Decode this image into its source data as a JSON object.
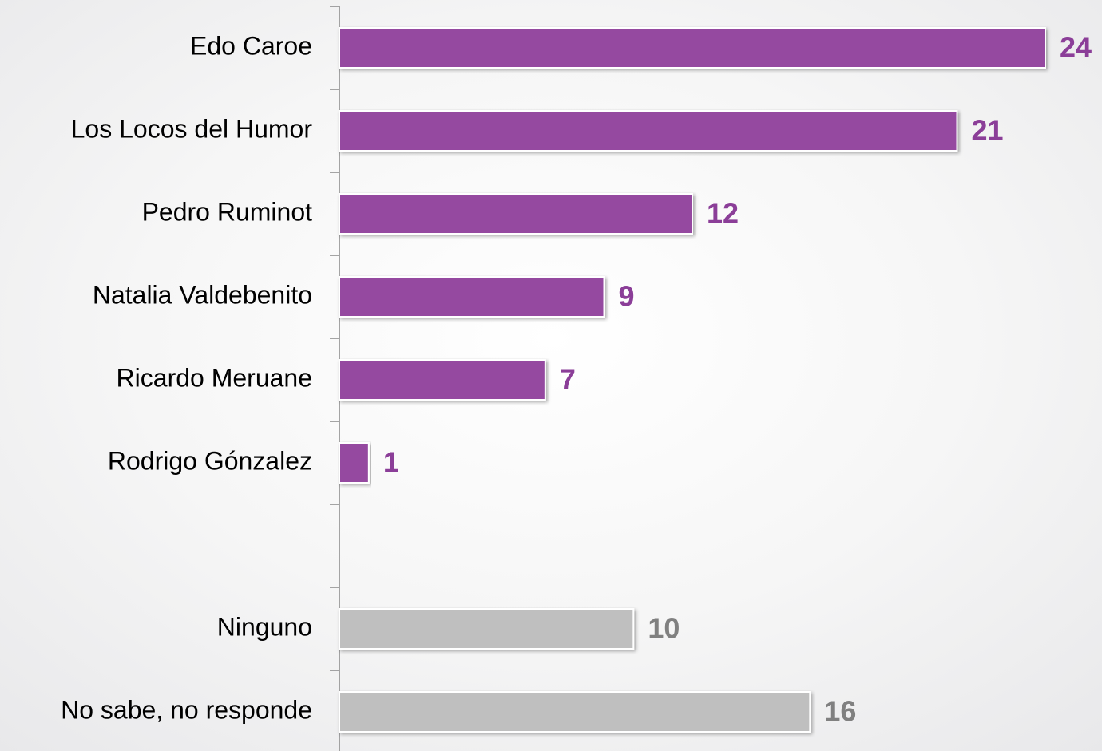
{
  "chart_data": {
    "type": "bar",
    "orientation": "horizontal",
    "categories": [
      "Edo Caroe",
      "Los Locos del Humor",
      "Pedro Ruminot",
      "Natalia Valdebenito",
      "Ricardo Meruane",
      "Rodrigo Gónzalez",
      null,
      "Ninguno",
      "No sabe, no responde"
    ],
    "values": [
      24,
      21,
      12,
      9,
      7,
      1,
      null,
      10,
      16
    ],
    "colors": [
      "#9549a0",
      "#9549a0",
      "#9549a0",
      "#9549a0",
      "#9549a0",
      "#9549a0",
      null,
      "#bfbfbf",
      "#bfbfbf"
    ],
    "label_colors": [
      "#8b3e98",
      "#8b3e98",
      "#8b3e98",
      "#8b3e98",
      "#8b3e98",
      "#8b3e98",
      null,
      "#808080",
      "#808080"
    ]
  }
}
